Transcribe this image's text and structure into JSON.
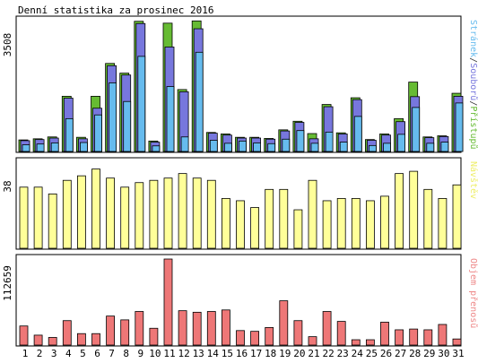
{
  "chart_data": {
    "type": "bar",
    "title": "Denní statistika za prosinec 2016",
    "categories": [
      "1",
      "2",
      "3",
      "4",
      "5",
      "6",
      "7",
      "8",
      "9",
      "10",
      "11",
      "12",
      "13",
      "14",
      "15",
      "16",
      "17",
      "18",
      "19",
      "20",
      "21",
      "22",
      "23",
      "24",
      "25",
      "26",
      "27",
      "28",
      "29",
      "30",
      "31"
    ],
    "weekend_days": [
      "3",
      "4",
      "10",
      "11",
      "17",
      "18",
      "24",
      "25",
      "31"
    ],
    "colors": {
      "pristupu": "#66bb33",
      "souboru": "#7777dd",
      "stranek": "#66bbee",
      "navstev": "#ffff99",
      "objem": "#ee7777",
      "weekend_label": "#66bb00",
      "weekday_label": "#000000",
      "frame_bg": "#f4f4f4"
    },
    "panels": [
      {
        "id": "traffic",
        "max_label": "3508",
        "ymax": 3508,
        "side_label_parts": [
          {
            "text": "Stránek",
            "color": "#66bbee"
          },
          {
            "text": "/",
            "color": "#333333"
          },
          {
            "text": "Souborů",
            "color": "#7777dd"
          },
          {
            "text": "/",
            "color": "#333333"
          },
          {
            "text": "Přístupů",
            "color": "#66bb33"
          }
        ],
        "series": [
          {
            "name": "Přístupů",
            "values": [
              310,
              340,
              390,
              1480,
              380,
              1480,
              2360,
              2100,
              3490,
              280,
              3440,
              1660,
              3500,
              510,
              470,
              380,
              380,
              350,
              580,
              810,
              480,
              1260,
              500,
              1440,
              320,
              470,
              880,
              1860,
              390,
              420,
              1560
            ]
          },
          {
            "name": "Souborů",
            "values": [
              290,
              320,
              360,
              1430,
              340,
              1160,
              2300,
              2050,
              3430,
              250,
              2800,
              1600,
              3290,
              490,
              440,
              360,
              360,
              330,
              550,
              780,
              340,
              1200,
              470,
              1390,
              300,
              440,
              800,
              1470,
              370,
              400,
              1480
            ]
          },
          {
            "name": "Stránek",
            "values": [
              180,
              200,
              230,
              880,
              240,
              980,
              1840,
              1340,
              2550,
              150,
              1740,
              390,
              2660,
              300,
              220,
              280,
              230,
              210,
              330,
              560,
              220,
              520,
              250,
              940,
              160,
              220,
              460,
              1180,
              220,
              250,
              1300
            ]
          }
        ]
      },
      {
        "id": "visits",
        "max_label": "38",
        "ymax": 38,
        "side_label_parts": [
          {
            "text": "Návštěv",
            "color": "#eeee66"
          }
        ],
        "series": [
          {
            "name": "Návštěv",
            "values": [
              27,
              27,
              24,
              30,
              32,
              35,
              31,
              27,
              29,
              30,
              31,
              33,
              31,
              30,
              22,
              21,
              18,
              26,
              26,
              17,
              30,
              21,
              22,
              22,
              21,
              23,
              33,
              34,
              26,
              22,
              28
            ]
          }
        ]
      },
      {
        "id": "volume",
        "max_label": "112659",
        "ymax": 112659,
        "side_label_parts": [
          {
            "text": "Objem přenosů",
            "color": "#ee8888"
          }
        ],
        "series": [
          {
            "name": "Objem přenosů",
            "values": [
              25000,
              13000,
              10000,
              32000,
              15000,
              15000,
              38000,
              33000,
              44000,
              22000,
              112659,
              45000,
              43000,
              44000,
              46000,
              19000,
              18000,
              23000,
              58000,
              32000,
              11000,
              44000,
              31000,
              7000,
              7000,
              30000,
              20000,
              21000,
              20000,
              27000,
              8000
            ]
          }
        ]
      }
    ]
  }
}
